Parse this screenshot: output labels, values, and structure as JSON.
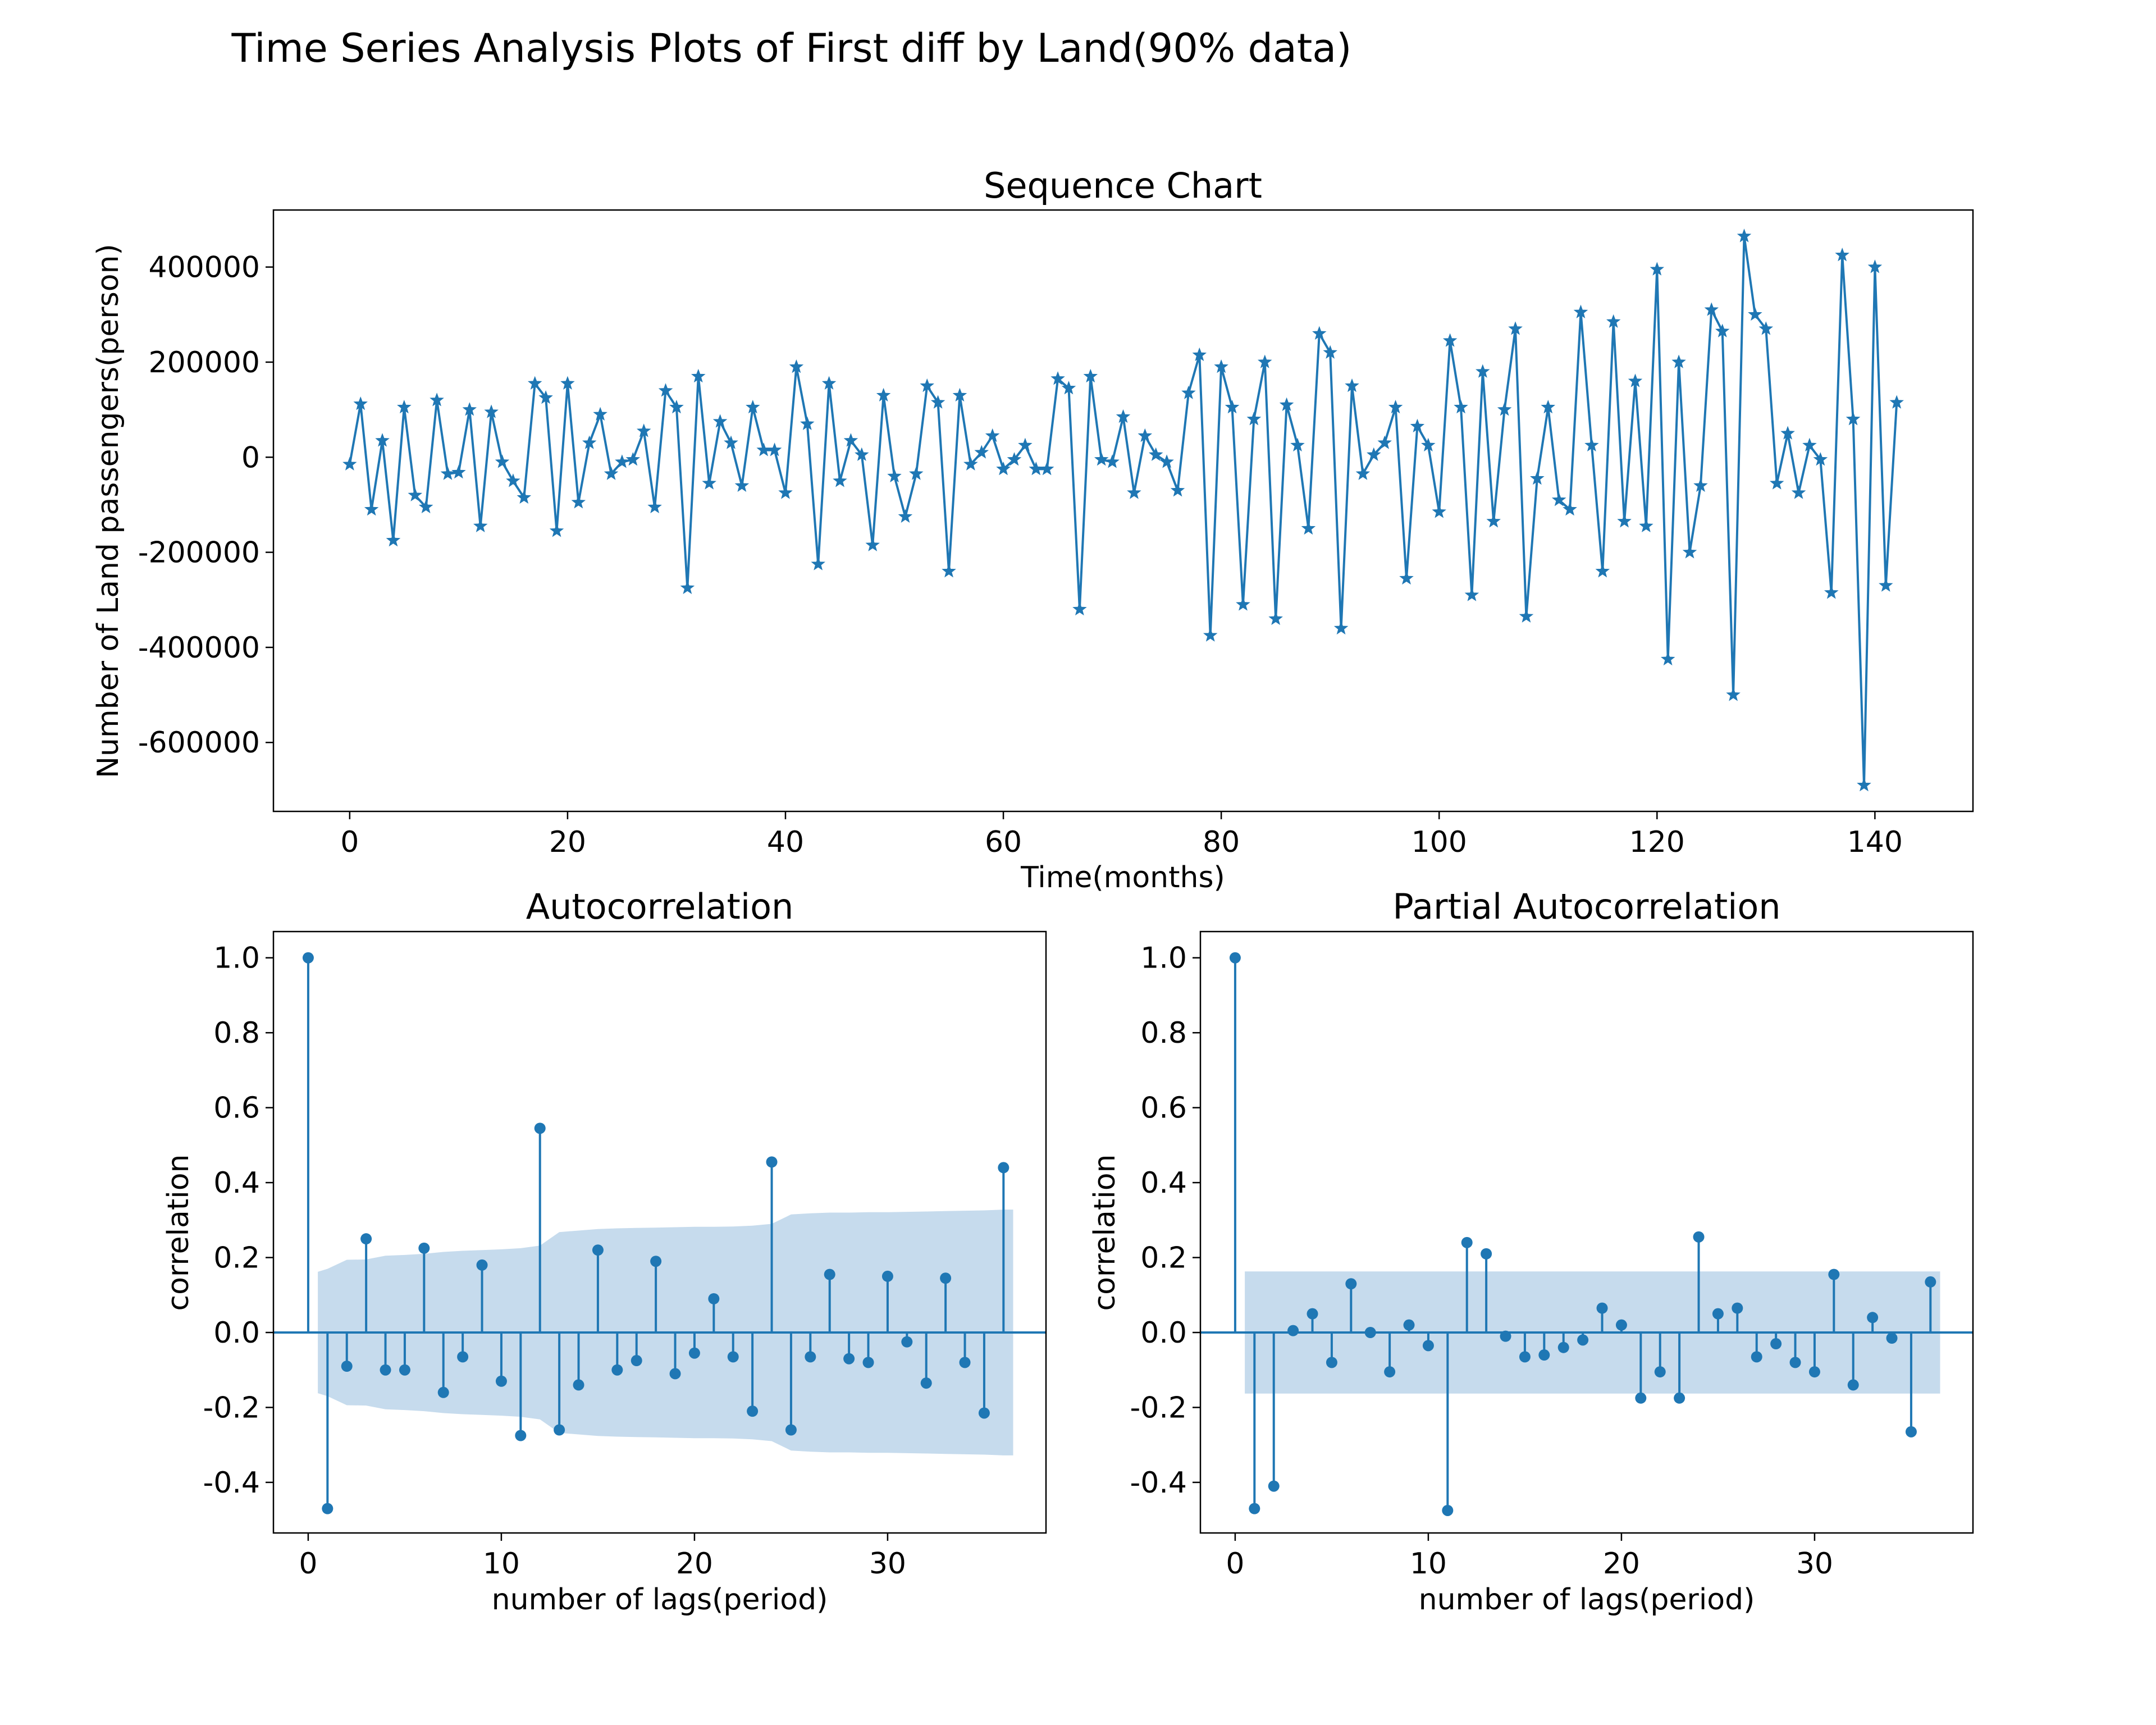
{
  "figure": {
    "title": "Time Series Analysis Plots of First diff by Land(90% data)"
  },
  "colors": {
    "series": "#1f77b4",
    "band": "#c6dbed",
    "axes": "#000000"
  },
  "chart_data": [
    {
      "type": "line",
      "title": "Sequence Chart",
      "xlabel": "Time(months)",
      "ylabel": "Number of Land passengers(person)",
      "marker": "star",
      "xlim": [
        -7,
        149
      ],
      "ylim": [
        -745000,
        520000
      ],
      "xticks": [
        0,
        20,
        40,
        60,
        80,
        100,
        120,
        140
      ],
      "xtick_labels": [
        "0",
        "20",
        "40",
        "60",
        "80",
        "100",
        "120",
        "140"
      ],
      "yticks": [
        400000,
        200000,
        0,
        -200000,
        -400000,
        -600000
      ],
      "ytick_labels": [
        "400000",
        "200000",
        "0",
        "-200000",
        "-400000",
        "-600000"
      ],
      "grid": false,
      "x_start": 0,
      "values": [
        -15000,
        112000,
        -110000,
        35000,
        -175000,
        105000,
        -80000,
        -105000,
        120000,
        -35000,
        -32000,
        100000,
        -145000,
        95000,
        -10000,
        -50000,
        -85000,
        155000,
        125000,
        -155000,
        155000,
        -95000,
        30000,
        90000,
        -35000,
        -10000,
        -5000,
        55000,
        -105000,
        140000,
        105000,
        -275000,
        170000,
        -55000,
        75000,
        30000,
        -60000,
        105000,
        15000,
        15000,
        -75000,
        190000,
        70000,
        -225000,
        155000,
        -50000,
        35000,
        5000,
        -185000,
        130000,
        -40000,
        -125000,
        -35000,
        150000,
        115000,
        -240000,
        130000,
        -15000,
        10000,
        45000,
        -25000,
        -5000,
        25000,
        -25000,
        -25000,
        165000,
        145000,
        -320000,
        170000,
        -5000,
        -10000,
        85000,
        -75000,
        45000,
        5000,
        -10000,
        -70000,
        135000,
        215000,
        -375000,
        190000,
        105000,
        -310000,
        80000,
        200000,
        -340000,
        110000,
        25000,
        -150000,
        260000,
        220000,
        -360000,
        150000,
        -35000,
        5000,
        30000,
        105000,
        -255000,
        65000,
        25000,
        -115000,
        245000,
        105000,
        -290000,
        180000,
        -135000,
        100000,
        270000,
        -335000,
        -45000,
        105000,
        -90000,
        -110000,
        305000,
        25000,
        -240000,
        285000,
        -135000,
        160000,
        -145000,
        395000,
        -425000,
        200000,
        -200000,
        -60000,
        310000,
        265000,
        -500000,
        465000,
        300000,
        270000,
        -55000,
        50000,
        -75000,
        25000,
        -5000,
        -285000,
        425000,
        80000,
        -690000,
        400000,
        -270000,
        115000
      ]
    },
    {
      "type": "stem",
      "title": "Autocorrelation",
      "xlabel": "number of lags(period)",
      "ylabel": "correlation",
      "xlim": [
        -1.8,
        38.2
      ],
      "ylim": [
        -0.535,
        1.07
      ],
      "xticks": [
        0,
        10,
        20,
        30
      ],
      "xtick_labels": [
        "0",
        "10",
        "20",
        "30"
      ],
      "yticks": [
        1.0,
        0.8,
        0.6,
        0.4,
        0.2,
        0.0,
        -0.2,
        -0.4
      ],
      "ytick_labels": [
        "1.0",
        "0.8",
        "0.6",
        "0.4",
        "0.2",
        "0.0",
        "-0.2",
        "-0.4"
      ],
      "grid": false,
      "lags": [
        0,
        1,
        2,
        3,
        4,
        5,
        6,
        7,
        8,
        9,
        10,
        11,
        12,
        13,
        14,
        15,
        16,
        17,
        18,
        19,
        20,
        21,
        22,
        23,
        24,
        25,
        26,
        27,
        28,
        29,
        30,
        31,
        32,
        33,
        34,
        35,
        36
      ],
      "values": [
        1.0,
        -0.47,
        -0.09,
        0.25,
        -0.1,
        -0.1,
        0.225,
        -0.16,
        -0.065,
        0.18,
        -0.13,
        -0.275,
        0.545,
        -0.26,
        -0.14,
        0.22,
        -0.1,
        -0.075,
        0.19,
        -0.11,
        -0.055,
        0.09,
        -0.065,
        -0.21,
        0.455,
        -0.26,
        -0.065,
        0.155,
        -0.07,
        -0.08,
        0.15,
        -0.025,
        -0.135,
        0.145,
        -0.08,
        -0.215,
        0.44
      ],
      "confidence_band": {
        "x": [
          0.5,
          1,
          2,
          3,
          4,
          5,
          6,
          7,
          8,
          9,
          10,
          11,
          12,
          13,
          14,
          15,
          16,
          17,
          18,
          19,
          20,
          21,
          22,
          23,
          24,
          25,
          26,
          27,
          28,
          29,
          30,
          31,
          32,
          33,
          34,
          35,
          36,
          36.5
        ],
        "upper": [
          0.162,
          0.17,
          0.194,
          0.195,
          0.205,
          0.207,
          0.21,
          0.215,
          0.218,
          0.22,
          0.222,
          0.225,
          0.232,
          0.268,
          0.272,
          0.276,
          0.278,
          0.279,
          0.28,
          0.281,
          0.282,
          0.282,
          0.283,
          0.285,
          0.29,
          0.315,
          0.318,
          0.32,
          0.32,
          0.321,
          0.321,
          0.322,
          0.323,
          0.324,
          0.325,
          0.326,
          0.328,
          0.328
        ]
      }
    },
    {
      "type": "stem",
      "title": "Partial Autocorrelation",
      "xlabel": "number of lags(period)",
      "ylabel": "correlation",
      "xlim": [
        -1.8,
        38.2
      ],
      "ylim": [
        -0.535,
        1.07
      ],
      "xticks": [
        0,
        10,
        20,
        30
      ],
      "xtick_labels": [
        "0",
        "10",
        "20",
        "30"
      ],
      "yticks": [
        1.0,
        0.8,
        0.6,
        0.4,
        0.2,
        0.0,
        -0.2,
        -0.4
      ],
      "ytick_labels": [
        "1.0",
        "0.8",
        "0.6",
        "0.4",
        "0.2",
        "0.0",
        "-0.2",
        "-0.4"
      ],
      "grid": false,
      "lags": [
        0,
        1,
        2,
        3,
        4,
        5,
        6,
        7,
        8,
        9,
        10,
        11,
        12,
        13,
        14,
        15,
        16,
        17,
        18,
        19,
        20,
        21,
        22,
        23,
        24,
        25,
        26,
        27,
        28,
        29,
        30,
        31,
        32,
        33,
        34,
        35,
        36
      ],
      "values": [
        1.0,
        -0.47,
        -0.41,
        0.005,
        0.05,
        -0.08,
        0.13,
        0.0,
        -0.105,
        0.02,
        -0.035,
        -0.475,
        0.24,
        0.21,
        -0.01,
        -0.065,
        -0.06,
        -0.04,
        -0.02,
        0.065,
        0.02,
        -0.175,
        -0.105,
        -0.175,
        0.255,
        0.05,
        0.065,
        -0.065,
        -0.03,
        -0.08,
        -0.105,
        0.155,
        -0.14,
        0.04,
        -0.015,
        -0.265,
        0.135
      ],
      "confidence_band": {
        "x": [
          0.5,
          36.5
        ],
        "upper": [
          0.163,
          0.163
        ]
      }
    }
  ]
}
